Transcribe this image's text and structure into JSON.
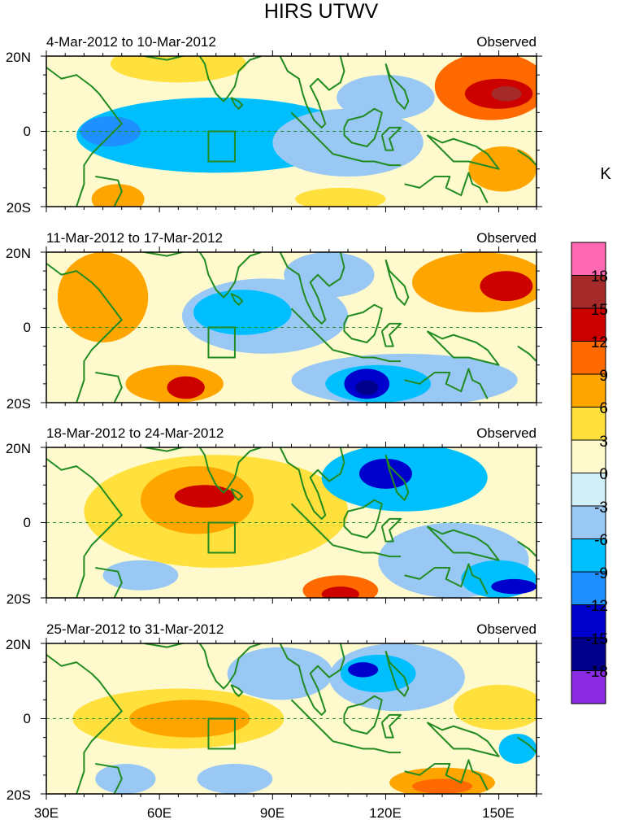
{
  "title": "HIRS UTWV",
  "chart_data": {
    "type": "heatmap",
    "title": "HIRS UTWV",
    "units": "K",
    "xlim": [
      30,
      160
    ],
    "ylim": [
      -20,
      20
    ],
    "x_ticks": [
      30,
      60,
      90,
      120,
      150
    ],
    "x_tick_labels": [
      "30E",
      "60E",
      "90E",
      "120E",
      "150E"
    ],
    "y_ticks": [
      20,
      0,
      -20
    ],
    "y_tick_labels": [
      "20N",
      "0",
      "20S"
    ],
    "box_region": {
      "lon": [
        73,
        80
      ],
      "lat": [
        -8,
        0
      ]
    },
    "colorbar": {
      "levels": [
        -18,
        -15,
        -12,
        -9,
        -6,
        -3,
        0,
        3,
        6,
        9,
        12,
        15,
        18
      ],
      "labels": [
        "-18",
        "-15",
        "-12",
        "-9",
        "-6",
        "-3",
        "0",
        "3",
        "6",
        "9",
        "12",
        "15",
        "18"
      ],
      "colors": [
        "#8a2be2",
        "#00008b",
        "#0000cd",
        "#1e90ff",
        "#00bfff",
        "#9ac8f5",
        "#d2f0fa",
        "#fffacd",
        "#ffe03c",
        "#ffa500",
        "#ff6a00",
        "#cd0000",
        "#a52a2a",
        "#ff69b4"
      ]
    },
    "panels": [
      {
        "period": "4-Mar-2012 to 10-Mar-2012",
        "label": "Observed",
        "features": [
          {
            "kind": "ellipse",
            "lon": 75,
            "lat": -1,
            "rlon": 37,
            "rlat": 10,
            "value": -7
          },
          {
            "kind": "ellipse",
            "lon": 47,
            "lat": 0,
            "rlon": 8,
            "rlat": 4,
            "value": -10
          },
          {
            "kind": "ellipse",
            "lon": 120,
            "lat": 9,
            "rlon": 13,
            "rlat": 6,
            "value": -6
          },
          {
            "kind": "ellipse",
            "lon": 110,
            "lat": -3,
            "rlon": 20,
            "rlat": 9,
            "value": -4
          },
          {
            "kind": "ellipse",
            "lon": 65,
            "lat": 18,
            "rlon": 18,
            "rlat": 5,
            "value": 4
          },
          {
            "kind": "ellipse",
            "lon": 148,
            "lat": 12,
            "rlon": 15,
            "rlat": 9,
            "value": 9
          },
          {
            "kind": "ellipse",
            "lon": 150,
            "lat": 10,
            "rlon": 9,
            "rlat": 4,
            "value": 13
          },
          {
            "kind": "ellipse",
            "lon": 152,
            "lat": 10,
            "rlon": 4,
            "rlat": 2,
            "value": 16
          },
          {
            "kind": "ellipse",
            "lon": 151,
            "lat": -10,
            "rlon": 9,
            "rlat": 6,
            "value": 8
          },
          {
            "kind": "ellipse",
            "lon": 49,
            "lat": -18,
            "rlon": 7,
            "rlat": 4,
            "value": 7
          },
          {
            "kind": "ellipse",
            "lon": 108,
            "lat": -18,
            "rlon": 12,
            "rlat": 3,
            "value": 4
          }
        ]
      },
      {
        "period": "11-Mar-2012 to 17-Mar-2012",
        "label": "Observed",
        "features": [
          {
            "kind": "ellipse",
            "lon": 88,
            "lat": 3,
            "rlon": 22,
            "rlat": 10,
            "value": -5
          },
          {
            "kind": "ellipse",
            "lon": 82,
            "lat": 4,
            "rlon": 13,
            "rlat": 6,
            "value": -8
          },
          {
            "kind": "ellipse",
            "lon": 105,
            "lat": 14,
            "rlon": 12,
            "rlat": 6,
            "value": -6
          },
          {
            "kind": "ellipse",
            "lon": 125,
            "lat": -14,
            "rlon": 30,
            "rlat": 7,
            "value": -6
          },
          {
            "kind": "ellipse",
            "lon": 118,
            "lat": -15,
            "rlon": 14,
            "rlat": 5,
            "value": -9
          },
          {
            "kind": "ellipse",
            "lon": 115,
            "lat": -15,
            "rlon": 6,
            "rlat": 4,
            "value": -14
          },
          {
            "kind": "ellipse",
            "lon": 115,
            "lat": -16,
            "rlon": 3,
            "rlat": 2,
            "value": -16
          },
          {
            "kind": "ellipse",
            "lon": 45,
            "lat": 8,
            "rlon": 12,
            "rlat": 12,
            "value": 6
          },
          {
            "kind": "ellipse",
            "lon": 40,
            "lat": 10,
            "rlon": 6,
            "rlat": 7,
            "value": 8
          },
          {
            "kind": "ellipse",
            "lon": 145,
            "lat": 12,
            "rlon": 18,
            "rlat": 8,
            "value": 8
          },
          {
            "kind": "ellipse",
            "lon": 152,
            "lat": 11,
            "rlon": 7,
            "rlat": 4,
            "value": 12
          },
          {
            "kind": "ellipse",
            "lon": 64,
            "lat": -15,
            "rlon": 13,
            "rlat": 5,
            "value": 7
          },
          {
            "kind": "ellipse",
            "lon": 67,
            "lat": -16,
            "rlon": 5,
            "rlat": 3,
            "value": 12
          }
        ]
      },
      {
        "period": "18-Mar-2012 to 24-Mar-2012",
        "label": "Observed",
        "features": [
          {
            "kind": "ellipse",
            "lon": 75,
            "lat": 3,
            "rlon": 35,
            "rlat": 15,
            "value": 5
          },
          {
            "kind": "ellipse",
            "lon": 70,
            "lat": 6,
            "rlon": 15,
            "rlat": 9,
            "value": 8
          },
          {
            "kind": "ellipse",
            "lon": 72,
            "lat": 7,
            "rlon": 8,
            "rlat": 3,
            "value": 13
          },
          {
            "kind": "ellipse",
            "lon": 55,
            "lat": -14,
            "rlon": 10,
            "rlat": 4,
            "value": -4
          },
          {
            "kind": "ellipse",
            "lon": 125,
            "lat": 12,
            "rlon": 22,
            "rlat": 9,
            "value": -7
          },
          {
            "kind": "ellipse",
            "lon": 120,
            "lat": 13,
            "rlon": 7,
            "rlat": 4,
            "value": -13
          },
          {
            "kind": "ellipse",
            "lon": 138,
            "lat": -10,
            "rlon": 20,
            "rlat": 10,
            "value": -5
          },
          {
            "kind": "ellipse",
            "lon": 150,
            "lat": -15,
            "rlon": 10,
            "rlat": 5,
            "value": -9
          },
          {
            "kind": "ellipse",
            "lon": 154,
            "lat": -17,
            "rlon": 6,
            "rlat": 2,
            "value": -13
          },
          {
            "kind": "ellipse",
            "lon": 108,
            "lat": -18,
            "rlon": 10,
            "rlat": 4,
            "value": 10
          },
          {
            "kind": "ellipse",
            "lon": 108,
            "lat": -19,
            "rlon": 5,
            "rlat": 2,
            "value": 13
          }
        ]
      },
      {
        "period": "25-Mar-2012 to 31-Mar-2012",
        "label": "Observed",
        "features": [
          {
            "kind": "ellipse",
            "lon": 65,
            "lat": 0,
            "rlon": 28,
            "rlat": 8,
            "value": 5
          },
          {
            "kind": "ellipse",
            "lon": 68,
            "lat": 0,
            "rlon": 16,
            "rlat": 5,
            "value": 8
          },
          {
            "kind": "ellipse",
            "lon": 92,
            "lat": 12,
            "rlon": 14,
            "rlat": 7,
            "value": -4
          },
          {
            "kind": "ellipse",
            "lon": 123,
            "lat": 11,
            "rlon": 18,
            "rlat": 9,
            "value": -6
          },
          {
            "kind": "ellipse",
            "lon": 118,
            "lat": 12,
            "rlon": 10,
            "rlat": 5,
            "value": -9
          },
          {
            "kind": "ellipse",
            "lon": 114,
            "lat": 13,
            "rlon": 4,
            "rlat": 2,
            "value": -14
          },
          {
            "kind": "ellipse",
            "lon": 150,
            "lat": 3,
            "rlon": 12,
            "rlat": 6,
            "value": 5
          },
          {
            "kind": "ellipse",
            "lon": 135,
            "lat": -17,
            "rlon": 14,
            "rlat": 4,
            "value": 6
          },
          {
            "kind": "ellipse",
            "lon": 135,
            "lat": -18,
            "rlon": 8,
            "rlat": 2,
            "value": 9
          },
          {
            "kind": "ellipse",
            "lon": 51,
            "lat": -16,
            "rlon": 8,
            "rlat": 4,
            "value": -5
          },
          {
            "kind": "ellipse",
            "lon": 80,
            "lat": -16,
            "rlon": 10,
            "rlat": 4,
            "value": -4
          },
          {
            "kind": "ellipse",
            "lon": 155,
            "lat": -8,
            "rlon": 5,
            "rlat": 4,
            "value": -7
          }
        ]
      }
    ]
  }
}
